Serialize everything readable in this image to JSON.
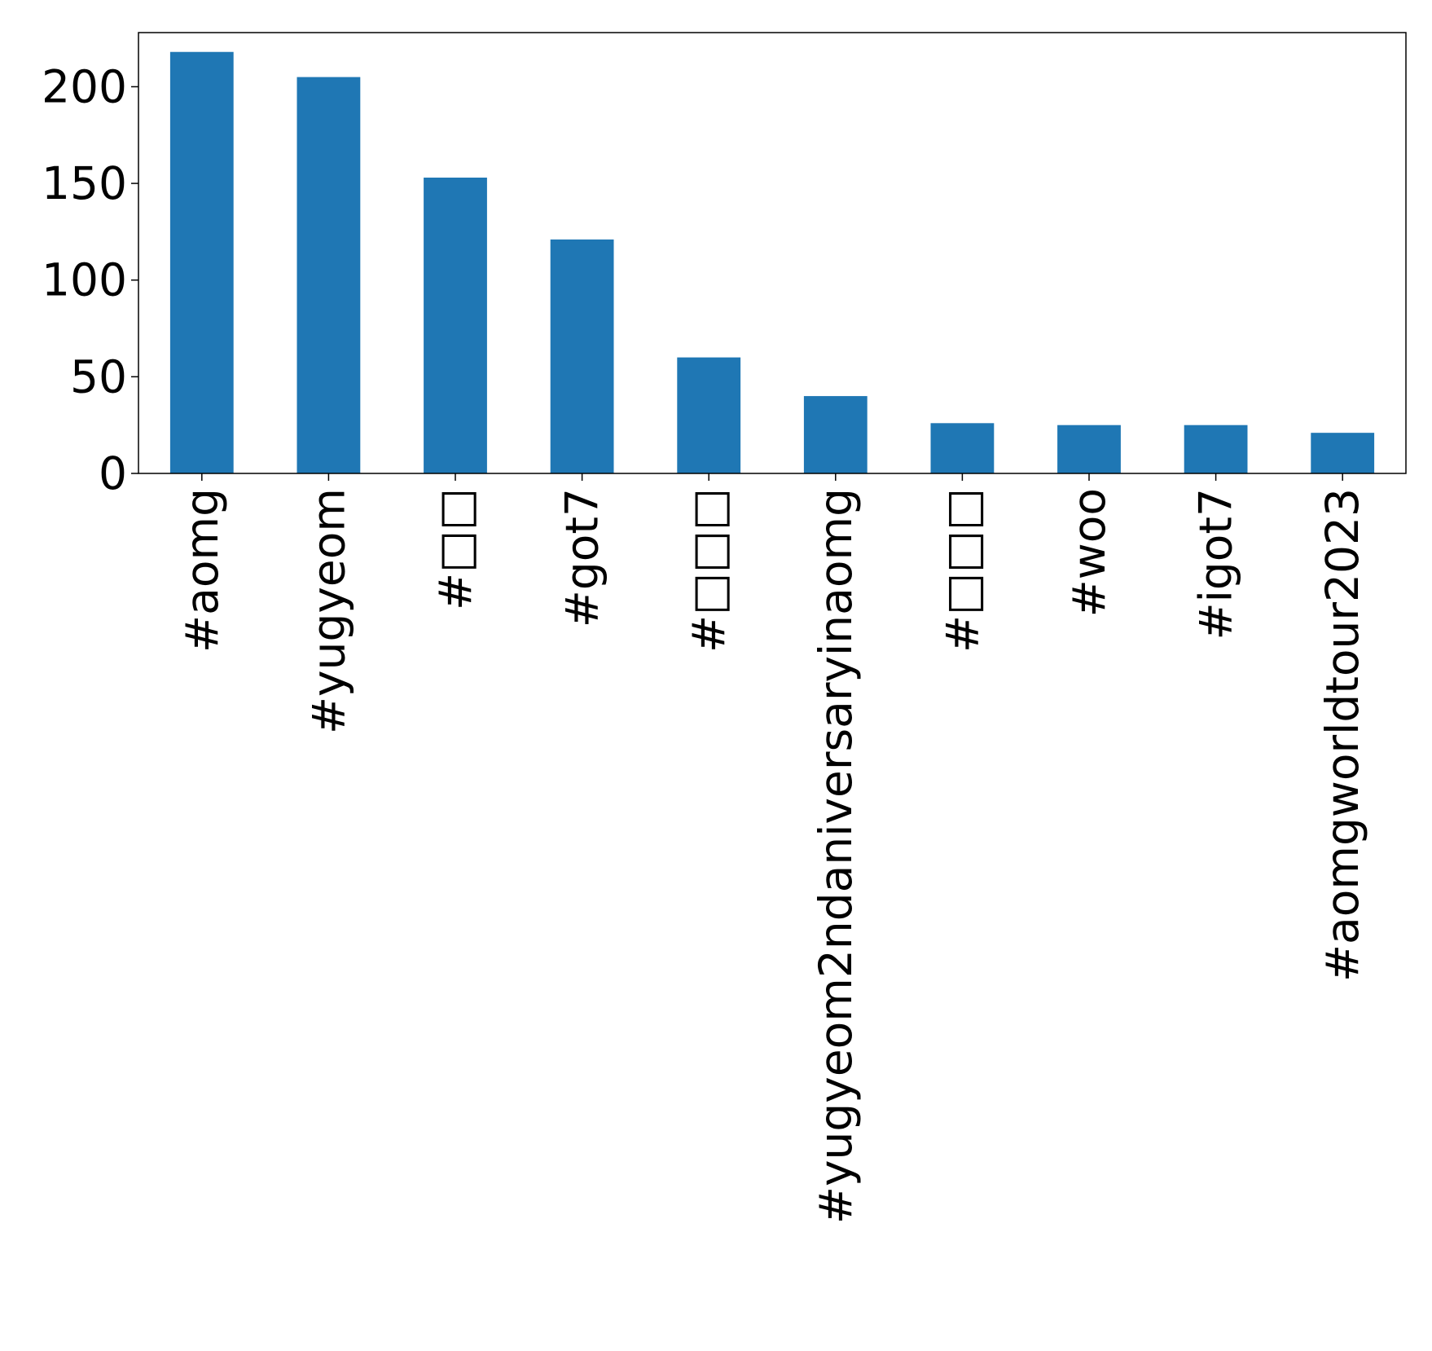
{
  "chart_data": {
    "type": "bar",
    "categories": [
      "#aomg",
      "#yugyeom",
      "#□□",
      "#got7",
      "#□□□",
      "#yugyeom2ndaniversaryinaomg",
      "#□□□",
      "#woo",
      "#igot7",
      "#aomgworldtour2023"
    ],
    "series": [
      {
        "values": [
          218,
          205,
          153,
          121,
          60,
          40,
          26,
          25,
          25,
          21
        ]
      }
    ],
    "ylim": [
      0,
      228
    ],
    "yticks": [
      0,
      50,
      100,
      150,
      200
    ],
    "bar_color": "#1f77b4",
    "grid": false,
    "legend": "none",
    "title": "",
    "xlabel": "",
    "ylabel": ""
  }
}
